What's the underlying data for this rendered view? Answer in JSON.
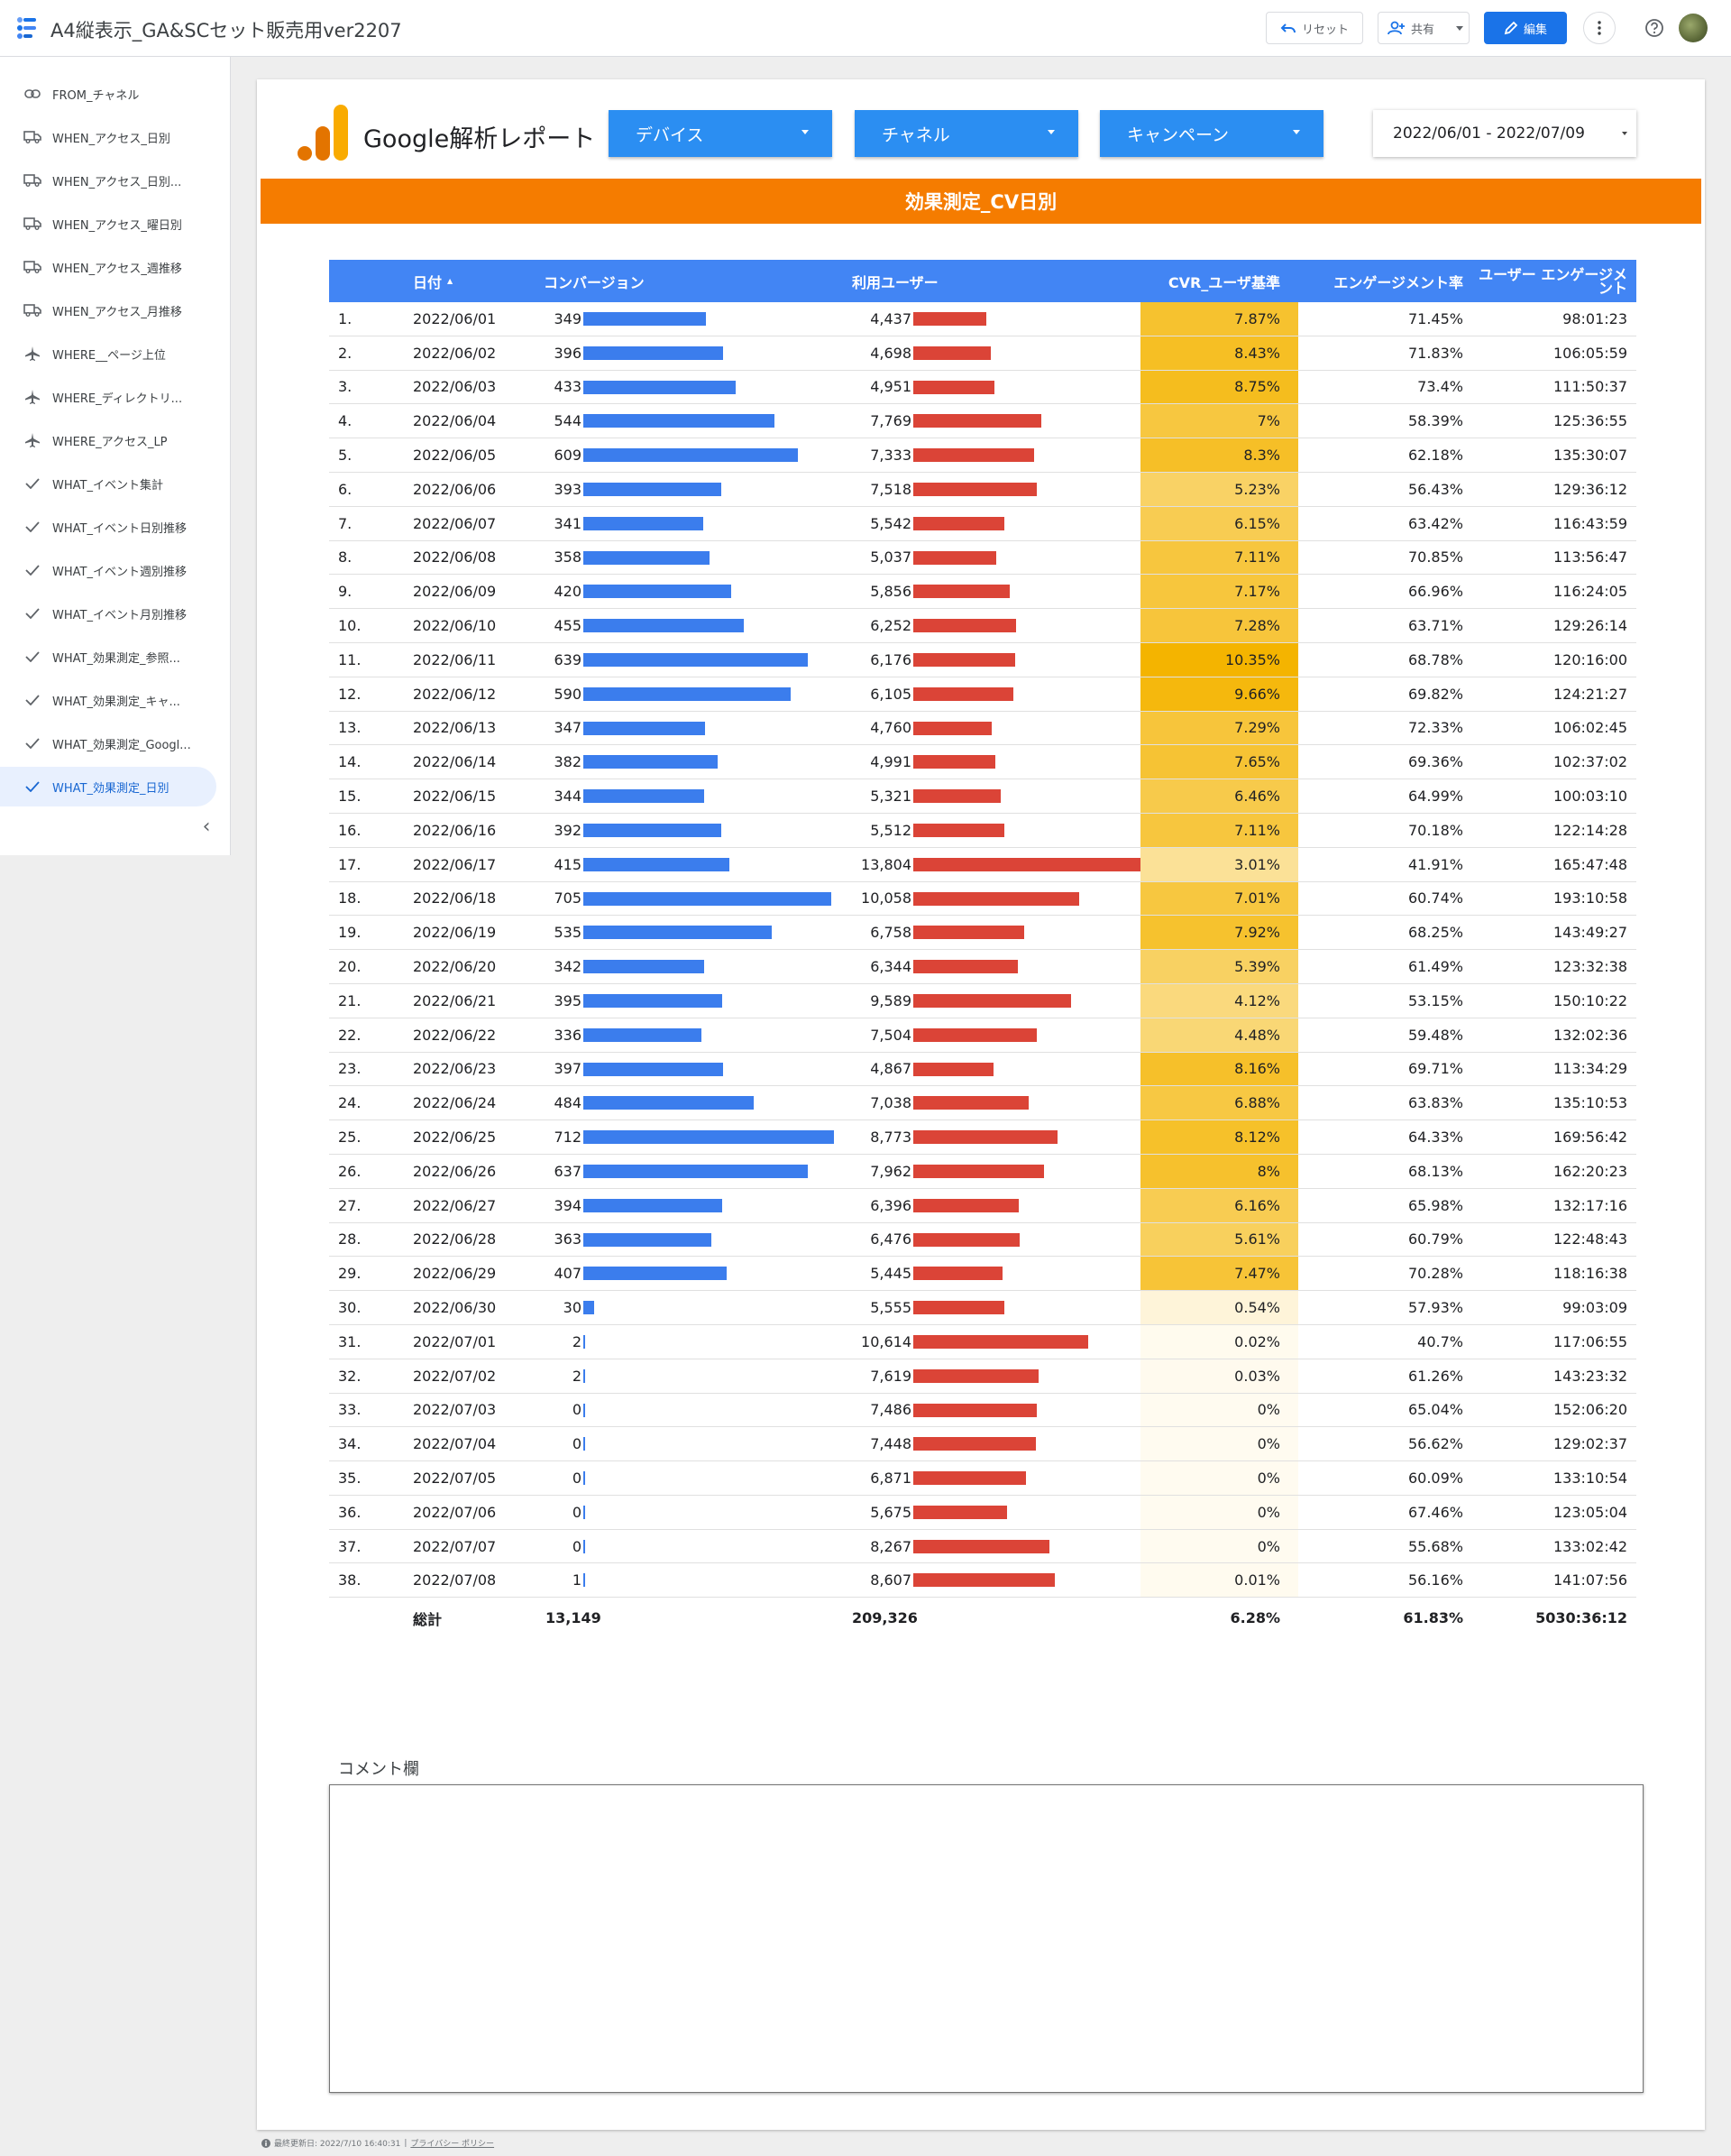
{
  "app": {
    "title": "A4縦表示_GA&SCセット販売用ver2207",
    "reset_label": "リセット",
    "share_label": "共有",
    "edit_label": "編集"
  },
  "sidebar": {
    "items": [
      {
        "label": "FROM_チャネル",
        "icon": "link-icon"
      },
      {
        "label": "WHEN_アクセス_日別",
        "icon": "truck-icon"
      },
      {
        "label": "WHEN_アクセス_日別...",
        "icon": "truck-icon"
      },
      {
        "label": "WHEN_アクセス_曜日別",
        "icon": "truck-icon"
      },
      {
        "label": "WHEN_アクセス_週推移",
        "icon": "truck-icon"
      },
      {
        "label": "WHEN_アクセス_月推移",
        "icon": "truck-icon"
      },
      {
        "label": "WHERE__ページ上位",
        "icon": "airplane-icon"
      },
      {
        "label": "WHERE_ディレクトリ...",
        "icon": "airplane-icon"
      },
      {
        "label": "WHERE_アクセス_LP",
        "icon": "airplane-icon"
      },
      {
        "label": "WHAT_イベント集計",
        "icon": "check-icon"
      },
      {
        "label": "WHAT_イベント日別推移",
        "icon": "check-icon"
      },
      {
        "label": "WHAT_イベント週別推移",
        "icon": "check-icon"
      },
      {
        "label": "WHAT_イベント月別推移",
        "icon": "check-icon"
      },
      {
        "label": "WHAT_効果測定_参照...",
        "icon": "check-icon"
      },
      {
        "label": "WHAT_効果測定_キャ...",
        "icon": "check-icon"
      },
      {
        "label": "WHAT_効果測定_Googl...",
        "icon": "check-icon"
      },
      {
        "label": "WHAT_効果測定_日別",
        "icon": "check-icon",
        "active": true
      }
    ]
  },
  "report": {
    "title": "Google解析レポート",
    "filters": [
      "デバイス",
      "チャネル",
      "キャンペーン"
    ],
    "date_range": "2022/06/01 - 2022/07/09",
    "banner": "効果測定_CV日別",
    "comment_label": "コメント欄"
  },
  "table": {
    "headers": [
      "日付",
      "コンバージョン",
      "利用ユーザー",
      "CVR_ユーザ基準",
      "エンゲージメント率",
      "ユーザー エンゲージメント"
    ],
    "sort_indicator": "▲",
    "rows": [
      {
        "n": "1.",
        "date": "2022/06/01",
        "cv": "349",
        "users": "4,437",
        "cvr": "7.87%",
        "eng": "71.45%",
        "time": "98:01:23"
      },
      {
        "n": "2.",
        "date": "2022/06/02",
        "cv": "396",
        "users": "4,698",
        "cvr": "8.43%",
        "eng": "71.83%",
        "time": "106:05:59"
      },
      {
        "n": "3.",
        "date": "2022/06/03",
        "cv": "433",
        "users": "4,951",
        "cvr": "8.75%",
        "eng": "73.4%",
        "time": "111:50:37"
      },
      {
        "n": "4.",
        "date": "2022/06/04",
        "cv": "544",
        "users": "7,769",
        "cvr": "7%",
        "eng": "58.39%",
        "time": "125:36:55"
      },
      {
        "n": "5.",
        "date": "2022/06/05",
        "cv": "609",
        "users": "7,333",
        "cvr": "8.3%",
        "eng": "62.18%",
        "time": "135:30:07"
      },
      {
        "n": "6.",
        "date": "2022/06/06",
        "cv": "393",
        "users": "7,518",
        "cvr": "5.23%",
        "eng": "56.43%",
        "time": "129:36:12"
      },
      {
        "n": "7.",
        "date": "2022/06/07",
        "cv": "341",
        "users": "5,542",
        "cvr": "6.15%",
        "eng": "63.42%",
        "time": "116:43:59"
      },
      {
        "n": "8.",
        "date": "2022/06/08",
        "cv": "358",
        "users": "5,037",
        "cvr": "7.11%",
        "eng": "70.85%",
        "time": "113:56:47"
      },
      {
        "n": "9.",
        "date": "2022/06/09",
        "cv": "420",
        "users": "5,856",
        "cvr": "7.17%",
        "eng": "66.96%",
        "time": "116:24:05"
      },
      {
        "n": "10.",
        "date": "2022/06/10",
        "cv": "455",
        "users": "6,252",
        "cvr": "7.28%",
        "eng": "63.71%",
        "time": "129:26:14"
      },
      {
        "n": "11.",
        "date": "2022/06/11",
        "cv": "639",
        "users": "6,176",
        "cvr": "10.35%",
        "eng": "68.78%",
        "time": "120:16:00"
      },
      {
        "n": "12.",
        "date": "2022/06/12",
        "cv": "590",
        "users": "6,105",
        "cvr": "9.66%",
        "eng": "69.82%",
        "time": "124:21:27"
      },
      {
        "n": "13.",
        "date": "2022/06/13",
        "cv": "347",
        "users": "4,760",
        "cvr": "7.29%",
        "eng": "72.33%",
        "time": "106:02:45"
      },
      {
        "n": "14.",
        "date": "2022/06/14",
        "cv": "382",
        "users": "4,991",
        "cvr": "7.65%",
        "eng": "69.36%",
        "time": "102:37:02"
      },
      {
        "n": "15.",
        "date": "2022/06/15",
        "cv": "344",
        "users": "5,321",
        "cvr": "6.46%",
        "eng": "64.99%",
        "time": "100:03:10"
      },
      {
        "n": "16.",
        "date": "2022/06/16",
        "cv": "392",
        "users": "5,512",
        "cvr": "7.11%",
        "eng": "70.18%",
        "time": "122:14:28"
      },
      {
        "n": "17.",
        "date": "2022/06/17",
        "cv": "415",
        "users": "13,804",
        "cvr": "3.01%",
        "eng": "41.91%",
        "time": "165:47:48"
      },
      {
        "n": "18.",
        "date": "2022/06/18",
        "cv": "705",
        "users": "10,058",
        "cvr": "7.01%",
        "eng": "60.74%",
        "time": "193:10:58"
      },
      {
        "n": "19.",
        "date": "2022/06/19",
        "cv": "535",
        "users": "6,758",
        "cvr": "7.92%",
        "eng": "68.25%",
        "time": "143:49:27"
      },
      {
        "n": "20.",
        "date": "2022/06/20",
        "cv": "342",
        "users": "6,344",
        "cvr": "5.39%",
        "eng": "61.49%",
        "time": "123:32:38"
      },
      {
        "n": "21.",
        "date": "2022/06/21",
        "cv": "395",
        "users": "9,589",
        "cvr": "4.12%",
        "eng": "53.15%",
        "time": "150:10:22"
      },
      {
        "n": "22.",
        "date": "2022/06/22",
        "cv": "336",
        "users": "7,504",
        "cvr": "4.48%",
        "eng": "59.48%",
        "time": "132:02:36"
      },
      {
        "n": "23.",
        "date": "2022/06/23",
        "cv": "397",
        "users": "4,867",
        "cvr": "8.16%",
        "eng": "69.71%",
        "time": "113:34:29"
      },
      {
        "n": "24.",
        "date": "2022/06/24",
        "cv": "484",
        "users": "7,038",
        "cvr": "6.88%",
        "eng": "63.83%",
        "time": "135:10:53"
      },
      {
        "n": "25.",
        "date": "2022/06/25",
        "cv": "712",
        "users": "8,773",
        "cvr": "8.12%",
        "eng": "64.33%",
        "time": "169:56:42"
      },
      {
        "n": "26.",
        "date": "2022/06/26",
        "cv": "637",
        "users": "7,962",
        "cvr": "8%",
        "eng": "68.13%",
        "time": "162:20:23"
      },
      {
        "n": "27.",
        "date": "2022/06/27",
        "cv": "394",
        "users": "6,396",
        "cvr": "6.16%",
        "eng": "65.98%",
        "time": "132:17:16"
      },
      {
        "n": "28.",
        "date": "2022/06/28",
        "cv": "363",
        "users": "6,476",
        "cvr": "5.61%",
        "eng": "60.79%",
        "time": "122:48:43"
      },
      {
        "n": "29.",
        "date": "2022/06/29",
        "cv": "407",
        "users": "5,445",
        "cvr": "7.47%",
        "eng": "70.28%",
        "time": "118:16:38"
      },
      {
        "n": "30.",
        "date": "2022/06/30",
        "cv": "30",
        "users": "5,555",
        "cvr": "0.54%",
        "eng": "57.93%",
        "time": "99:03:09"
      },
      {
        "n": "31.",
        "date": "2022/07/01",
        "cv": "2",
        "users": "10,614",
        "cvr": "0.02%",
        "eng": "40.7%",
        "time": "117:06:55"
      },
      {
        "n": "32.",
        "date": "2022/07/02",
        "cv": "2",
        "users": "7,619",
        "cvr": "0.03%",
        "eng": "61.26%",
        "time": "143:23:32"
      },
      {
        "n": "33.",
        "date": "2022/07/03",
        "cv": "0",
        "users": "7,486",
        "cvr": "0%",
        "eng": "65.04%",
        "time": "152:06:20"
      },
      {
        "n": "34.",
        "date": "2022/07/04",
        "cv": "0",
        "users": "7,448",
        "cvr": "0%",
        "eng": "56.62%",
        "time": "129:02:37"
      },
      {
        "n": "35.",
        "date": "2022/07/05",
        "cv": "0",
        "users": "6,871",
        "cvr": "0%",
        "eng": "60.09%",
        "time": "133:10:54"
      },
      {
        "n": "36.",
        "date": "2022/07/06",
        "cv": "0",
        "users": "5,675",
        "cvr": "0%",
        "eng": "67.46%",
        "time": "123:05:04"
      },
      {
        "n": "37.",
        "date": "2022/07/07",
        "cv": "0",
        "users": "8,267",
        "cvr": "0%",
        "eng": "55.68%",
        "time": "133:02:42"
      },
      {
        "n": "38.",
        "date": "2022/07/08",
        "cv": "1",
        "users": "8,607",
        "cvr": "0.01%",
        "eng": "56.16%",
        "time": "141:07:56"
      }
    ],
    "totals": {
      "label": "総計",
      "cv": "13,149",
      "users": "209,326",
      "cvr": "6.28%",
      "eng": "61.83%",
      "time": "5030:36:12"
    }
  },
  "footer": {
    "updated": "最終更新日: 2022/7/10 16:40:31",
    "privacy": "プライバシー ポリシー"
  },
  "colors": {
    "header_blue": "#4285f4",
    "cv_bar": "#3b7ded",
    "users_bar": "#db4437",
    "banner_orange": "#f57c00",
    "filter_blue": "#2b8ef2",
    "cvr_heat_max": "#f4b400"
  }
}
